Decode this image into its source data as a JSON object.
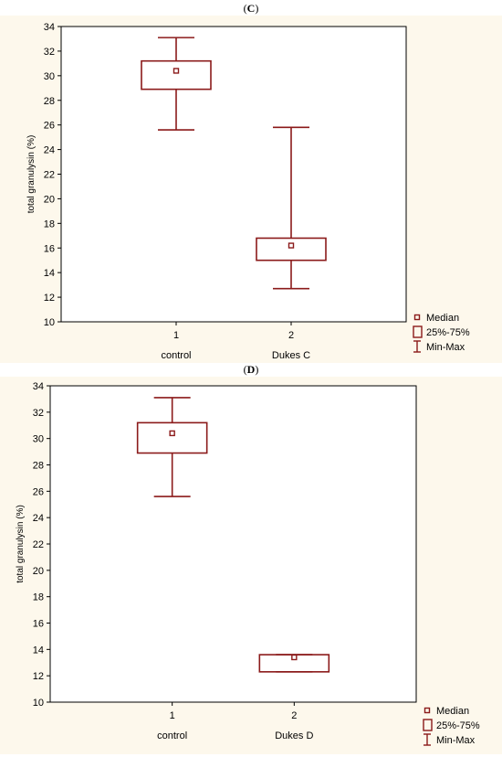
{
  "panels": [
    {
      "label_open": "(",
      "label_letter": "C",
      "label_close": ")"
    },
    {
      "label_open": "(",
      "label_letter": "D",
      "label_close": ")"
    }
  ],
  "colors": {
    "box": "#8b1a1a",
    "frame": "#000000",
    "plot_bg": "#ffffff",
    "outer_bg": "#fdf8ec"
  },
  "chart_data": [
    {
      "type": "box",
      "title": "(C)",
      "ylabel": "total granulysin (%)",
      "xlabel": "",
      "ylim": [
        10,
        34
      ],
      "yticks": [
        10,
        12,
        14,
        16,
        18,
        20,
        22,
        24,
        26,
        28,
        30,
        32,
        34
      ],
      "categories": [
        "1",
        "2"
      ],
      "group_names": [
        "control",
        "Dukes C"
      ],
      "boxes": [
        {
          "median": 30.4,
          "q1": 28.9,
          "q3": 31.2,
          "min": 25.6,
          "max": 33.1
        },
        {
          "median": 16.2,
          "q1": 15.0,
          "q3": 16.8,
          "min": 12.7,
          "max": 25.8
        }
      ],
      "legend": [
        "Median",
        "25%-75%",
        "Min-Max"
      ],
      "legend_position": "bottom-right",
      "grid": false
    },
    {
      "type": "box",
      "title": "(D)",
      "ylabel": "total granulysin (%)",
      "xlabel": "",
      "ylim": [
        10,
        34
      ],
      "yticks": [
        10,
        12,
        14,
        16,
        18,
        20,
        22,
        24,
        26,
        28,
        30,
        32,
        34
      ],
      "categories": [
        "1",
        "2"
      ],
      "group_names": [
        "control",
        "Dukes D"
      ],
      "boxes": [
        {
          "median": 30.4,
          "q1": 28.9,
          "q3": 31.2,
          "min": 25.6,
          "max": 33.1
        },
        {
          "median": 13.4,
          "q1": 12.3,
          "q3": 13.6,
          "min": 12.3,
          "max": 13.6
        }
      ],
      "legend": [
        "Median",
        "25%-75%",
        "Min-Max"
      ],
      "legend_position": "bottom-right",
      "grid": false
    }
  ]
}
